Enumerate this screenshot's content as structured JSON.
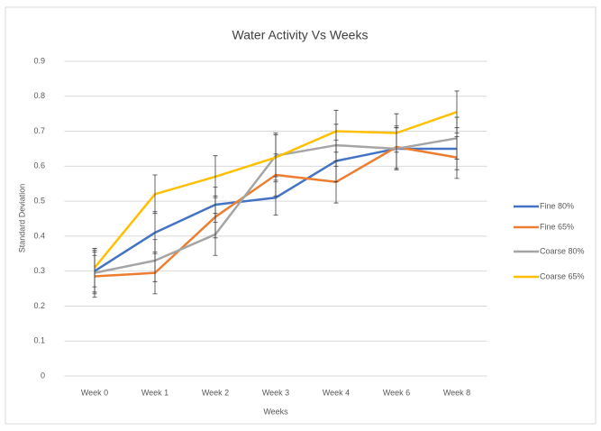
{
  "chart_data": {
    "type": "line",
    "title": "Water Activity Vs Weeks",
    "x_label": "Weeks",
    "y_label": "Standard Deviation",
    "categories": [
      "Week 0",
      "Week 1",
      "Week 2",
      "Week 3",
      "Week 4",
      "Week 6",
      "Week 8"
    ],
    "ylim": [
      0,
      0.9
    ],
    "yticks": [
      0,
      0.1,
      0.2,
      0.3,
      0.4,
      0.5,
      0.6,
      0.7,
      0.8,
      0.9
    ],
    "grid": true,
    "legend": "right",
    "series": [
      {
        "name": "Fine 80%",
        "color": "#4472c4",
        "values": [
          0.3,
          0.41,
          0.49,
          0.51,
          0.615,
          0.65,
          0.65
        ],
        "errors": [
          0.06,
          0.06,
          0.05,
          0.05,
          0.06,
          0.06,
          0.06
        ]
      },
      {
        "name": "Fine 65%",
        "color": "#ed7d31",
        "values": [
          0.285,
          0.295,
          0.455,
          0.575,
          0.555,
          0.655,
          0.625
        ],
        "errors": [
          0.06,
          0.06,
          0.06,
          0.06,
          0.06,
          0.06,
          0.06
        ]
      },
      {
        "name": "Coarse  80%",
        "color": "#a5a5a5",
        "values": [
          0.295,
          0.33,
          0.405,
          0.63,
          0.66,
          0.65,
          0.68
        ],
        "errors": [
          0.06,
          0.06,
          0.06,
          0.06,
          0.06,
          0.06,
          0.06
        ]
      },
      {
        "name": "Coarse 65%",
        "color": "#ffc000",
        "values": [
          0.31,
          0.52,
          0.57,
          0.625,
          0.7,
          0.695,
          0.755
        ],
        "errors": [
          0.055,
          0.055,
          0.06,
          0.07,
          0.06,
          0.055,
          0.06
        ]
      }
    ]
  }
}
